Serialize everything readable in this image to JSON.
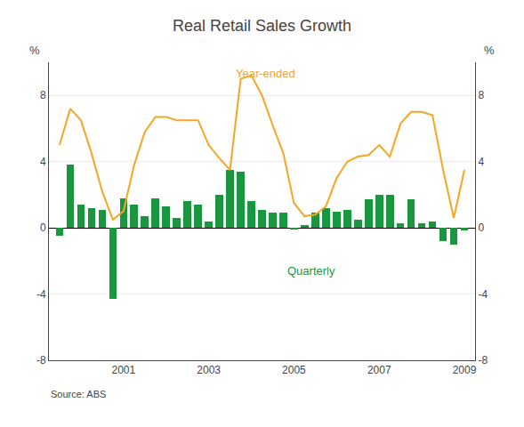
{
  "chart_data": {
    "type": "bar",
    "title": "Real Retail Sales Growth",
    "source": "Source: ABS",
    "ylabel": "%",
    "y2label": "%",
    "x": [
      1999.5,
      1999.75,
      2000.0,
      2000.25,
      2000.5,
      2000.75,
      2001.0,
      2001.25,
      2001.5,
      2001.75,
      2002.0,
      2002.25,
      2002.5,
      2002.75,
      2003.0,
      2003.25,
      2003.5,
      2003.75,
      2004.0,
      2004.25,
      2004.5,
      2004.75,
      2005.0,
      2005.25,
      2005.5,
      2005.75,
      2006.0,
      2006.25,
      2006.5,
      2006.75,
      2007.0,
      2007.25,
      2007.5,
      2007.75,
      2008.0,
      2008.25,
      2008.5,
      2008.75,
      2009.0
    ],
    "series": [
      {
        "name": "Quarterly",
        "type": "bar",
        "color": "#1a9640",
        "values": [
          -0.5,
          3.8,
          1.4,
          1.2,
          1.1,
          -4.3,
          1.8,
          1.4,
          0.7,
          1.8,
          1.3,
          0.6,
          1.6,
          1.4,
          0.4,
          2.0,
          3.5,
          3.4,
          1.6,
          1.1,
          0.9,
          0.9,
          -0.1,
          0.15,
          0.9,
          1.2,
          1.0,
          1.1,
          0.5,
          1.7,
          2.0,
          2.0,
          0.3,
          1.7,
          0.3,
          0.4,
          -0.8,
          -1.0,
          -0.15
        ]
      },
      {
        "name": "Year-ended",
        "type": "line",
        "color": "#f5a623",
        "values": [
          5.0,
          7.2,
          6.5,
          4.5,
          2.2,
          0.5,
          1.0,
          3.8,
          5.8,
          6.7,
          6.7,
          6.5,
          6.5,
          6.5,
          5.0,
          4.2,
          3.5,
          9.0,
          9.2,
          8.0,
          6.2,
          4.5,
          1.5,
          0.7,
          0.8,
          1.3,
          3.0,
          4.0,
          4.3,
          4.4,
          5.0,
          4.3,
          6.3,
          7.0,
          7.0,
          6.8,
          3.5,
          0.6,
          3.5
        ]
      }
    ],
    "annotations": [
      {
        "text": "Year-ended",
        "x": 2003.6,
        "y": 8.8
      },
      {
        "text": "Quarterly",
        "x": 2004.8,
        "y": -2.1
      }
    ],
    "xlim": [
      1999.25,
      2009.25
    ],
    "xticks": [
      2001,
      2003,
      2005,
      2007,
      2009
    ],
    "ylim": [
      -8,
      10
    ],
    "yticks": [
      -8,
      -4,
      0,
      4,
      8
    ],
    "y2lim": [
      -8,
      10
    ],
    "y2ticks": [
      -8,
      -4,
      0,
      4,
      8
    ],
    "grid": true
  }
}
